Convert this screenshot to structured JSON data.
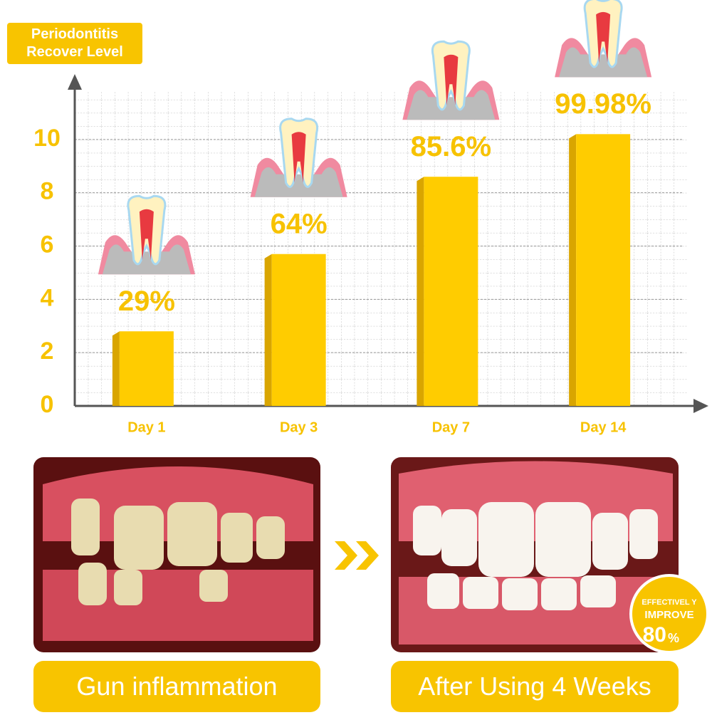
{
  "chart_data": {
    "type": "bar",
    "title": "Periodontitis Recover Level",
    "categories": [
      "Day 1",
      "Day 3",
      "Day 7",
      "Day 14"
    ],
    "values": [
      2.8,
      5.7,
      8.6,
      10.2
    ],
    "annotations": [
      "29%",
      "64%",
      "85.6%",
      "99.98%"
    ],
    "color": "#ffcc00",
    "ylim": [
      0,
      12
    ],
    "yticks": [
      0,
      2,
      4,
      6,
      8,
      10
    ],
    "grid": true
  },
  "photos": [
    {
      "caption": "Gun inflammation"
    },
    {
      "caption": "After Using 4 Weeks",
      "badge": {
        "line1": "EFFECTIVEL Y",
        "line2": "IMPROVE",
        "value": "80",
        "unit": "%"
      }
    }
  ]
}
